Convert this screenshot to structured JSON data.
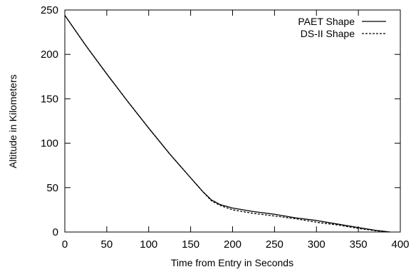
{
  "chart_data": {
    "type": "line",
    "xlabel": "Time from Entry in Seconds",
    "ylabel": "Altitude in Kilometers",
    "xlim": [
      0,
      400
    ],
    "ylim": [
      0,
      250
    ],
    "xticks": [
      0,
      50,
      100,
      150,
      200,
      250,
      300,
      350,
      400
    ],
    "yticks": [
      0,
      50,
      100,
      150,
      200,
      250
    ],
    "grid": false,
    "legend_position": "top-right",
    "series": [
      {
        "name": "PAET Shape",
        "line_style": "solid",
        "color": "#000000",
        "x": [
          0,
          25,
          50,
          75,
          100,
          125,
          150,
          165,
          175,
          185,
          200,
          225,
          250,
          275,
          300,
          325,
          350,
          370,
          388
        ],
        "y": [
          244,
          210,
          178,
          147,
          117,
          88,
          61,
          45,
          36,
          31,
          27,
          23,
          20,
          16,
          13,
          9,
          5,
          2,
          0
        ]
      },
      {
        "name": "DS-II Shape",
        "line_style": "dashed",
        "color": "#000000",
        "x": [
          0,
          25,
          50,
          75,
          100,
          125,
          150,
          165,
          175,
          185,
          200,
          225,
          250,
          275,
          300,
          325,
          350,
          370,
          385
        ],
        "y": [
          244,
          210,
          178,
          147,
          117,
          88,
          61,
          45,
          35,
          30,
          25,
          21,
          18,
          15,
          11,
          8,
          4,
          1.5,
          0
        ]
      }
    ]
  }
}
